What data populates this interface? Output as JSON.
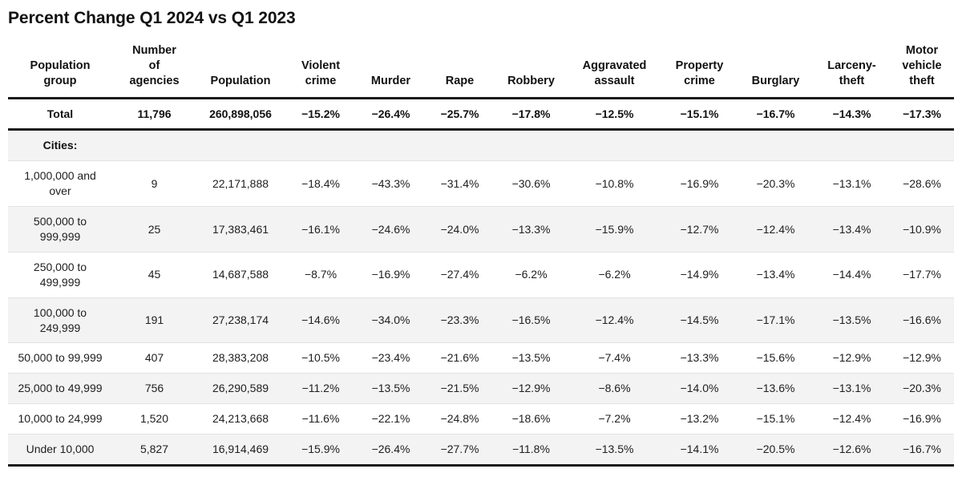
{
  "title": "Percent Change Q1 2024 vs Q1 2023",
  "chart_data": {
    "type": "table",
    "columns": [
      "Population\ngroup",
      "Number\nof\nagencies",
      "Population",
      "Violent\ncrime",
      "Murder",
      "Rape",
      "Robbery",
      "Aggravated\nassault",
      "Property\ncrime",
      "Burglary",
      "Larceny-\ntheft",
      "Motor\nvehicle\ntheft"
    ],
    "total_row": [
      "Total",
      "11,796",
      "260,898,056",
      "−15.2%",
      "−26.4%",
      "−25.7%",
      "−17.8%",
      "−12.5%",
      "−15.1%",
      "−16.7%",
      "−14.3%",
      "−17.3%"
    ],
    "section_label": "Cities:",
    "rows": [
      [
        "1,000,000 and\nover",
        "9",
        "22,171,888",
        "−18.4%",
        "−43.3%",
        "−31.4%",
        "−30.6%",
        "−10.8%",
        "−16.9%",
        "−20.3%",
        "−13.1%",
        "−28.6%"
      ],
      [
        "500,000 to\n999,999",
        "25",
        "17,383,461",
        "−16.1%",
        "−24.6%",
        "−24.0%",
        "−13.3%",
        "−15.9%",
        "−12.7%",
        "−12.4%",
        "−13.4%",
        "−10.9%"
      ],
      [
        "250,000 to\n499,999",
        "45",
        "14,687,588",
        "−8.7%",
        "−16.9%",
        "−27.4%",
        "−6.2%",
        "−6.2%",
        "−14.9%",
        "−13.4%",
        "−14.4%",
        "−17.7%"
      ],
      [
        "100,000 to\n249,999",
        "191",
        "27,238,174",
        "−14.6%",
        "−34.0%",
        "−23.3%",
        "−16.5%",
        "−12.4%",
        "−14.5%",
        "−17.1%",
        "−13.5%",
        "−16.6%"
      ],
      [
        "50,000 to 99,999",
        "407",
        "28,383,208",
        "−10.5%",
        "−23.4%",
        "−21.6%",
        "−13.5%",
        "−7.4%",
        "−13.3%",
        "−15.6%",
        "−12.9%",
        "−12.9%"
      ],
      [
        "25,000 to 49,999",
        "756",
        "26,290,589",
        "−11.2%",
        "−13.5%",
        "−21.5%",
        "−12.9%",
        "−8.6%",
        "−14.0%",
        "−13.6%",
        "−13.1%",
        "−20.3%"
      ],
      [
        "10,000 to 24,999",
        "1,520",
        "24,213,668",
        "−11.6%",
        "−22.1%",
        "−24.8%",
        "−18.6%",
        "−7.2%",
        "−13.2%",
        "−15.1%",
        "−12.4%",
        "−16.9%"
      ],
      [
        "Under 10,000",
        "5,827",
        "16,914,469",
        "−15.9%",
        "−26.4%",
        "−27.7%",
        "−11.8%",
        "−13.5%",
        "−14.1%",
        "−20.5%",
        "−12.6%",
        "−16.7%"
      ]
    ],
    "banded_row_color": "#f3f3f4",
    "rule_color": "#1b1b1b",
    "layout": {
      "header_align": "center",
      "cell_align": "center",
      "thick_rules": [
        "below-header",
        "below-total",
        "table-bottom"
      ]
    }
  }
}
